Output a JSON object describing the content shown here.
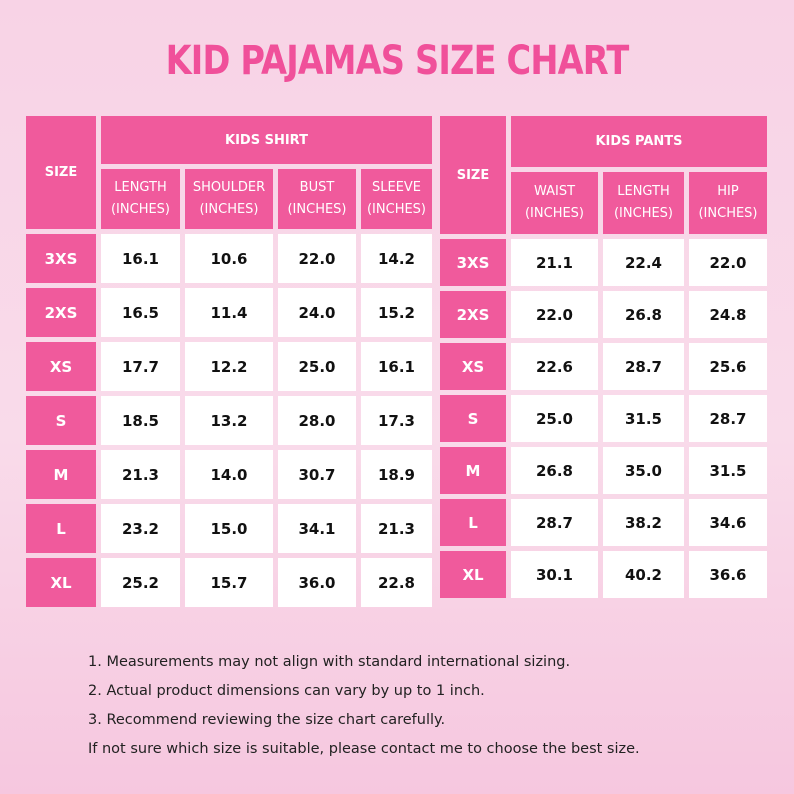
{
  "title": "KID PAJAMAS SIZE CHART",
  "shirt": {
    "size_header": "SIZE",
    "group_header": "KIDS SHIRT",
    "columns": [
      {
        "name": "LENGTH",
        "unit": "(INCHES)"
      },
      {
        "name": "SHOULDER",
        "unit": "(INCHES)"
      },
      {
        "name": "BUST",
        "unit": "(INCHES)"
      },
      {
        "name": "SLEEVE",
        "unit": "(INCHES)"
      }
    ],
    "rows": [
      {
        "size": "3XS",
        "values": [
          "16.1",
          "10.6",
          "22.0",
          "14.2"
        ]
      },
      {
        "size": "2XS",
        "values": [
          "16.5",
          "11.4",
          "24.0",
          "15.2"
        ]
      },
      {
        "size": "XS",
        "values": [
          "17.7",
          "12.2",
          "25.0",
          "16.1"
        ]
      },
      {
        "size": "S",
        "values": [
          "18.5",
          "13.2",
          "28.0",
          "17.3"
        ]
      },
      {
        "size": "M",
        "values": [
          "21.3",
          "14.0",
          "30.7",
          "18.9"
        ]
      },
      {
        "size": "L",
        "values": [
          "23.2",
          "15.0",
          "34.1",
          "21.3"
        ]
      },
      {
        "size": "XL",
        "values": [
          "25.2",
          "15.7",
          "36.0",
          "22.8"
        ]
      }
    ]
  },
  "pants": {
    "size_header": "SIZE",
    "group_header": "KIDS PANTS",
    "columns": [
      {
        "name": "WAIST",
        "unit": "(INCHES)"
      },
      {
        "name": "LENGTH",
        "unit": "(INCHES)"
      },
      {
        "name": "HIP",
        "unit": "(INCHES)"
      }
    ],
    "rows": [
      {
        "size": "3XS",
        "values": [
          "21.1",
          "22.4",
          "22.0"
        ]
      },
      {
        "size": "2XS",
        "values": [
          "22.0",
          "26.8",
          "24.8"
        ]
      },
      {
        "size": "XS",
        "values": [
          "22.6",
          "28.7",
          "25.6"
        ]
      },
      {
        "size": "S",
        "values": [
          "25.0",
          "31.5",
          "28.7"
        ]
      },
      {
        "size": "M",
        "values": [
          "26.8",
          "35.0",
          "31.5"
        ]
      },
      {
        "size": "L",
        "values": [
          "28.7",
          "38.2",
          "34.6"
        ]
      },
      {
        "size": "XL",
        "values": [
          "30.1",
          "40.2",
          "36.6"
        ]
      }
    ]
  },
  "notes": [
    "1. Measurements may not align with standard international sizing.",
    "2. Actual product dimensions can vary by up to 1 inch.",
    "3. Recommend reviewing the size chart carefully.",
    "If not sure which size is suitable, please contact me to choose the best size."
  ],
  "colors": {
    "accent": "#f05a9c",
    "title": "#f0509a",
    "background": "#f8d3e6"
  }
}
